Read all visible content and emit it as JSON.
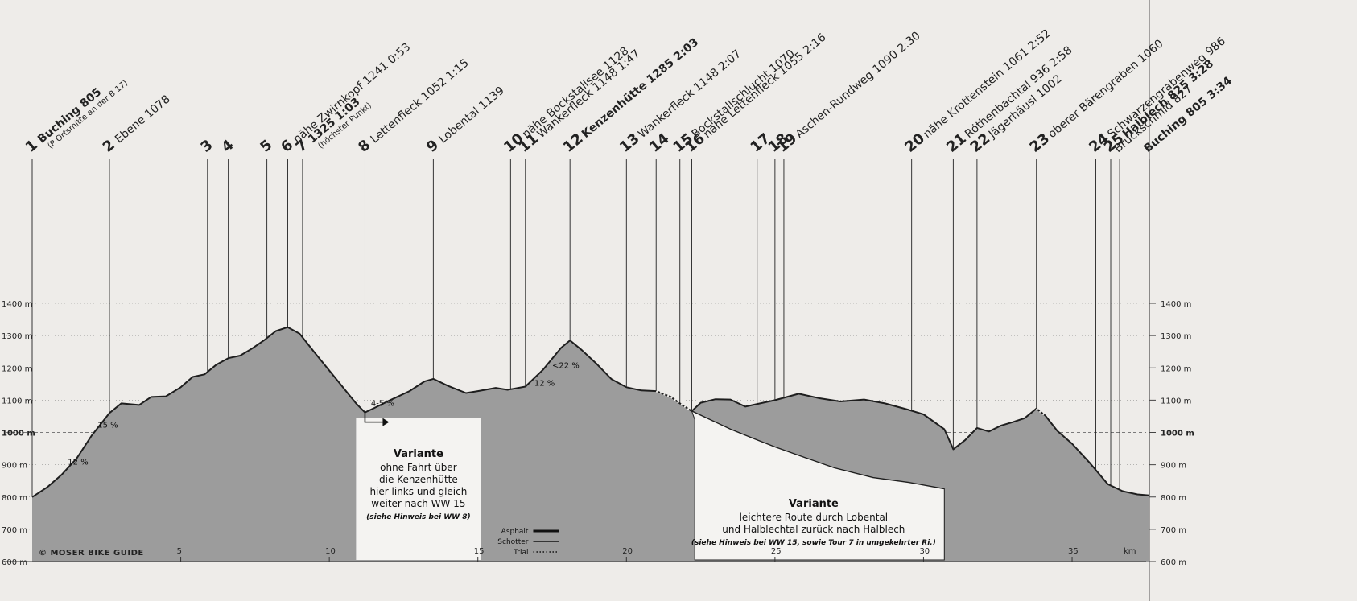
{
  "chart_data": {
    "type": "area",
    "title": "",
    "xlabel": "km",
    "ylabel": "",
    "xlim": [
      0,
      37.6
    ],
    "ylim": [
      600,
      1400
    ],
    "x_ticks": [
      5,
      10,
      15,
      20,
      25,
      30,
      35
    ],
    "x_unit_label": "km",
    "y_ticks_left": [
      "600 m",
      "700 m",
      "800 m",
      "900 m",
      "1000 m",
      "1100 m",
      "1200 m",
      "1300 m",
      "1400 m"
    ],
    "y_ticks_right": [
      "600 m",
      "700 m",
      "800 m",
      "900 m",
      "1000 m",
      "1100 m",
      "1200 m",
      "1300 m",
      "1400 m"
    ],
    "y_tick_values": [
      600,
      700,
      800,
      900,
      1000,
      1100,
      1200,
      1300,
      1400
    ],
    "emphasized_y_ticks": [
      1000
    ],
    "colors": {
      "fill": "#9c9c9c",
      "outline": "#1e1e1e",
      "background": "#eeece9"
    },
    "series": [
      {
        "points": [
          [
            0,
            800
          ],
          [
            0.5,
            830
          ],
          [
            1,
            870
          ],
          [
            1.5,
            920
          ],
          [
            2,
            990
          ],
          [
            2.6,
            1060
          ],
          [
            3,
            1090
          ],
          [
            3.6,
            1085
          ],
          [
            4,
            1110
          ],
          [
            4.5,
            1112
          ],
          [
            5,
            1140
          ],
          [
            5.4,
            1172
          ],
          [
            5.8,
            1180
          ],
          [
            6.2,
            1210
          ],
          [
            6.6,
            1230
          ],
          [
            7,
            1238
          ],
          [
            7.4,
            1260
          ],
          [
            7.8,
            1285
          ],
          [
            8.2,
            1314
          ],
          [
            8.6,
            1326
          ],
          [
            9,
            1306
          ],
          [
            9.5,
            1248
          ],
          [
            10,
            1192
          ],
          [
            10.5,
            1135
          ],
          [
            10.9,
            1090
          ],
          [
            11.2,
            1062
          ],
          [
            11.5,
            1075
          ],
          [
            12,
            1098
          ],
          [
            12.7,
            1128
          ],
          [
            13.2,
            1158
          ],
          [
            13.5,
            1166
          ],
          [
            14,
            1144
          ],
          [
            14.6,
            1122
          ],
          [
            15,
            1128
          ],
          [
            15.6,
            1138
          ],
          [
            16,
            1132
          ],
          [
            16.6,
            1142
          ],
          [
            17.2,
            1195
          ],
          [
            17.8,
            1262
          ],
          [
            18.1,
            1285
          ],
          [
            18.5,
            1255
          ],
          [
            19,
            1212
          ],
          [
            19.5,
            1165
          ],
          [
            20,
            1140
          ],
          [
            20.5,
            1130
          ],
          [
            21,
            1128
          ],
          [
            21.5,
            1110
          ],
          [
            21.8,
            1090
          ],
          [
            22.2,
            1066
          ],
          [
            22.5,
            1092
          ],
          [
            23,
            1103
          ],
          [
            23.5,
            1102
          ],
          [
            24,
            1080
          ],
          [
            24.5,
            1090
          ],
          [
            25,
            1100
          ],
          [
            25.8,
            1120
          ],
          [
            26.5,
            1106
          ],
          [
            27.2,
            1096
          ],
          [
            28,
            1102
          ],
          [
            28.7,
            1090
          ],
          [
            29.5,
            1070
          ],
          [
            30,
            1056
          ],
          [
            30.7,
            1010
          ],
          [
            31,
            948
          ],
          [
            31.4,
            976
          ],
          [
            31.8,
            1014
          ],
          [
            32.2,
            1003
          ],
          [
            32.6,
            1021
          ],
          [
            33,
            1032
          ],
          [
            33.4,
            1044
          ],
          [
            33.8,
            1074
          ],
          [
            34.1,
            1052
          ],
          [
            34.5,
            1005
          ],
          [
            35,
            965
          ],
          [
            35.6,
            905
          ],
          [
            36.2,
            840
          ],
          [
            36.7,
            818
          ],
          [
            37.2,
            808
          ],
          [
            37.6,
            805
          ]
        ]
      }
    ],
    "variant_profile": [
      [
        22.2,
        1066
      ],
      [
        23.5,
        1010
      ],
      [
        24.3,
        980
      ],
      [
        25,
        955
      ],
      [
        26,
        922
      ],
      [
        27,
        890
      ],
      [
        28.3,
        860
      ],
      [
        29.5,
        845
      ],
      [
        30.7,
        825
      ]
    ],
    "waypoints": [
      {
        "num": "1",
        "name": "Buching 805",
        "bold": true,
        "time": "",
        "sub": "(P Ortsmitte an der B 17)",
        "km": 0
      },
      {
        "num": "2",
        "name": "Ebene 1078",
        "bold": false,
        "time": "",
        "sub": "",
        "km": 2.6
      },
      {
        "num": "3",
        "name": "",
        "bold": false,
        "time": "",
        "sub": "",
        "km": 5.9
      },
      {
        "num": "4",
        "name": "",
        "bold": false,
        "time": "",
        "sub": "",
        "km": 6.6
      },
      {
        "num": "5",
        "name": "",
        "bold": false,
        "time": "",
        "sub": "",
        "km": 7.9
      },
      {
        "num": "6",
        "name": "nähe Zwirnkopf 1241 0:53",
        "bold": false,
        "time": "",
        "sub": "",
        "km": 8.6
      },
      {
        "num": "7",
        "name": "1325 1:03",
        "bold": true,
        "time": "",
        "sub": "(höchster Punkt)",
        "km": 9.1
      },
      {
        "num": "8",
        "name": "Lettenfleck 1052 1:15",
        "bold": false,
        "time": "",
        "sub": "",
        "km": 11.2
      },
      {
        "num": "9",
        "name": "Lobental 1139",
        "bold": false,
        "time": "",
        "sub": "",
        "km": 13.5
      },
      {
        "num": "10",
        "name": "nähe Bockstallsee 1128",
        "bold": false,
        "time": "",
        "sub": "",
        "km": 16.1
      },
      {
        "num": "11",
        "name": "Wankerfleck 1148 1:47",
        "bold": false,
        "time": "",
        "sub": "",
        "km": 16.6
      },
      {
        "num": "12",
        "name": "Kenzenhütte 1285 2:03",
        "bold": true,
        "time": "",
        "sub": "",
        "km": 18.1
      },
      {
        "num": "13",
        "name": "Wankerfleck 1148 2:07",
        "bold": false,
        "time": "",
        "sub": "",
        "km": 20.0
      },
      {
        "num": "14",
        "name": "",
        "bold": false,
        "time": "",
        "sub": "",
        "km": 21.0
      },
      {
        "num": "15",
        "name": "Bockstallschlucht 1070",
        "bold": false,
        "time": "",
        "sub": "",
        "km": 21.8
      },
      {
        "num": "16",
        "name": "nähe Lettenfleck 1055 2:16",
        "bold": false,
        "time": "",
        "sub": "",
        "km": 22.2
      },
      {
        "num": "17",
        "name": "",
        "bold": false,
        "time": "",
        "sub": "",
        "km": 24.4
      },
      {
        "num": "18",
        "name": "",
        "bold": false,
        "time": "",
        "sub": "",
        "km": 25.0
      },
      {
        "num": "19",
        "name": "Aschen-Rundweg 1090 2:30",
        "bold": false,
        "time": "",
        "sub": "",
        "km": 25.3
      },
      {
        "num": "20",
        "name": "nähe Krottenstein 1061 2:52",
        "bold": false,
        "time": "",
        "sub": "",
        "km": 29.6
      },
      {
        "num": "21",
        "name": "Röthenbachtal 936 2:58",
        "bold": false,
        "time": "",
        "sub": "",
        "km": 31.0
      },
      {
        "num": "22",
        "name": "Jägerhäusl 1002",
        "bold": false,
        "time": "",
        "sub": "",
        "km": 31.8
      },
      {
        "num": "23",
        "name": "oberer Bärengraben 1060",
        "bold": false,
        "time": "",
        "sub": "",
        "km": 33.8
      },
      {
        "num": "24",
        "name": "Schwarzengrabenweg 986",
        "bold": false,
        "time": "",
        "sub": "",
        "km": 35.8
      },
      {
        "num": "25",
        "name": "Halblech 825 3:28",
        "bold": true,
        "time": "",
        "sub": "",
        "km": 36.3
      },
      {
        "num": "",
        "name": "Bruckschmid 827",
        "bold": false,
        "time": "",
        "sub": "",
        "km": 36.6
      },
      {
        "num": "",
        "name": "Buching 805 3:34",
        "bold": true,
        "time": "",
        "sub": "",
        "km": 37.6
      }
    ],
    "gradients": [
      {
        "text": "12 %",
        "km": 1.2,
        "elev": 900
      },
      {
        "text": "15 %",
        "km": 2.2,
        "elev": 1015
      },
      {
        "text": "4-5 %",
        "km": 11.4,
        "elev": 1082
      },
      {
        "text": "12 %",
        "km": 16.9,
        "elev": 1145
      },
      {
        "text": "<22 %",
        "km": 17.5,
        "elev": 1200
      }
    ],
    "annotations": [
      {
        "id": "variant-1",
        "title": "Variante",
        "lines": [
          "ohne Fahrt über",
          "die Kenzenhütte",
          "hier links und gleich",
          "weiter nach WW 15"
        ],
        "note": "(siehe Hinweis bei WW 8)"
      },
      {
        "id": "variant-2",
        "title": "Variante",
        "lines": [
          "leichtere Route durch Lobental",
          "und Halblechtal zurück nach Halblech"
        ],
        "note": "(siehe Hinweis bei WW 15, sowie Tour 7 in umgekehrter Ri.)"
      }
    ],
    "legend": {
      "placement": "bottom-center",
      "items": [
        {
          "label": "Asphalt",
          "style": "thick"
        },
        {
          "label": "Schotter",
          "style": "solid"
        },
        {
          "label": "Trial",
          "style": "dotted"
        }
      ]
    },
    "brand": "©  MOSER BIKE GUIDE",
    "grid": true
  }
}
